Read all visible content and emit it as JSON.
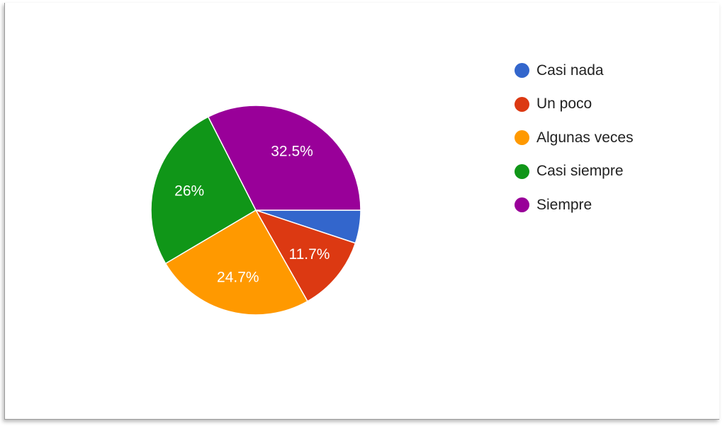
{
  "chart_data": {
    "type": "pie",
    "categories": [
      "Casi nada",
      "Un poco",
      "Algunas veces",
      "Casi siempre",
      "Siempre"
    ],
    "values": [
      5.1,
      11.7,
      24.7,
      26.0,
      32.5
    ],
    "value_labels": [
      "",
      "11.7%",
      "24.7%",
      "26%",
      "32.5%"
    ],
    "colors": [
      "#3366cc",
      "#dc3912",
      "#ff9900",
      "#109618",
      "#990099"
    ],
    "start_angle_deg": 90,
    "direction": "clockwise",
    "legend": "right"
  }
}
